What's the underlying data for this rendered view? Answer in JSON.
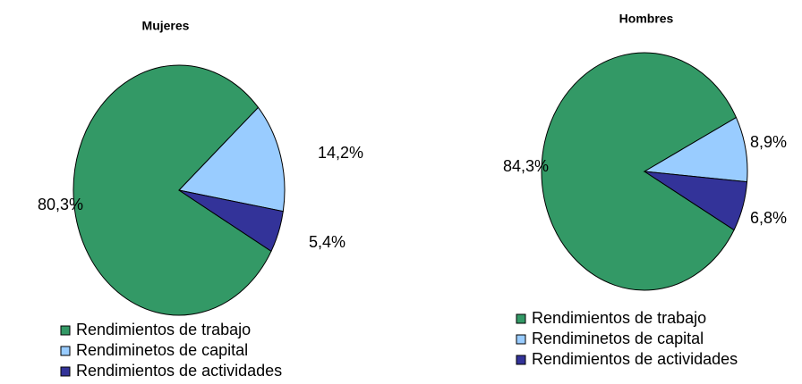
{
  "chart_data": [
    {
      "type": "pie",
      "title": "Mujeres",
      "categories": [
        "Rendimientos de trabajo",
        "Rendiminetos de capital",
        "Rendimientos de actividades"
      ],
      "values": [
        80.3,
        14.2,
        5.4
      ],
      "value_labels": [
        "80,3%",
        "14,2%",
        "5,4%"
      ],
      "colors": [
        "#339966",
        "#99ccff",
        "#333399"
      ]
    },
    {
      "type": "pie",
      "title": "Hombres",
      "categories": [
        "Rendimientos de trabajo",
        "Rendiminetos de capital",
        "Rendimientos de actividades"
      ],
      "values": [
        84.3,
        8.9,
        6.8
      ],
      "value_labels": [
        "84,3%",
        "8,9%",
        "6,8%"
      ],
      "colors": [
        "#339966",
        "#99ccff",
        "#333399"
      ]
    }
  ]
}
